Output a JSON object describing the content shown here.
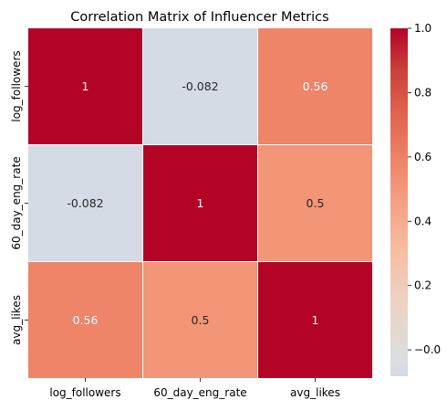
{
  "chart_data": {
    "type": "heatmap",
    "title": "Correlation Matrix of Influencer Metrics",
    "x_categories": [
      "log_followers",
      "60_day_eng_rate",
      "avg_likes"
    ],
    "y_categories": [
      "log_followers",
      "60_day_eng_rate",
      "avg_likes"
    ],
    "values": [
      [
        1,
        -0.082,
        0.56
      ],
      [
        -0.082,
        1,
        0.5
      ],
      [
        0.56,
        0.5,
        1
      ]
    ],
    "annotations": [
      [
        "1",
        "-0.082",
        "0.56"
      ],
      [
        "-0.082",
        "1",
        "0.5"
      ],
      [
        "0.56",
        "0.5",
        "1"
      ]
    ],
    "colormap": "coolwarm",
    "vmin": -0.082,
    "vmax": 1.0,
    "colorbar_ticks": [
      -0.0,
      0.2,
      0.4,
      0.6,
      0.8,
      1.0
    ],
    "colorbar_tick_labels": [
      "−0.0",
      "0.2",
      "0.4",
      "0.6",
      "0.8",
      "1.0"
    ],
    "cell_colors": [
      [
        "#b40426",
        "#d5dbe5",
        "#ee8468"
      ],
      [
        "#d5dbe5",
        "#b40426",
        "#f39577"
      ],
      [
        "#ee8468",
        "#f39577",
        "#b40426"
      ]
    ],
    "annotation_colors": [
      [
        "#ffffff",
        "#262626",
        "#ffffff"
      ],
      [
        "#262626",
        "#ffffff",
        "#262626"
      ],
      [
        "#ffffff",
        "#262626",
        "#ffffff"
      ]
    ],
    "grid_line_color": "#ffffff",
    "xlabel": "",
    "ylabel": ""
  }
}
